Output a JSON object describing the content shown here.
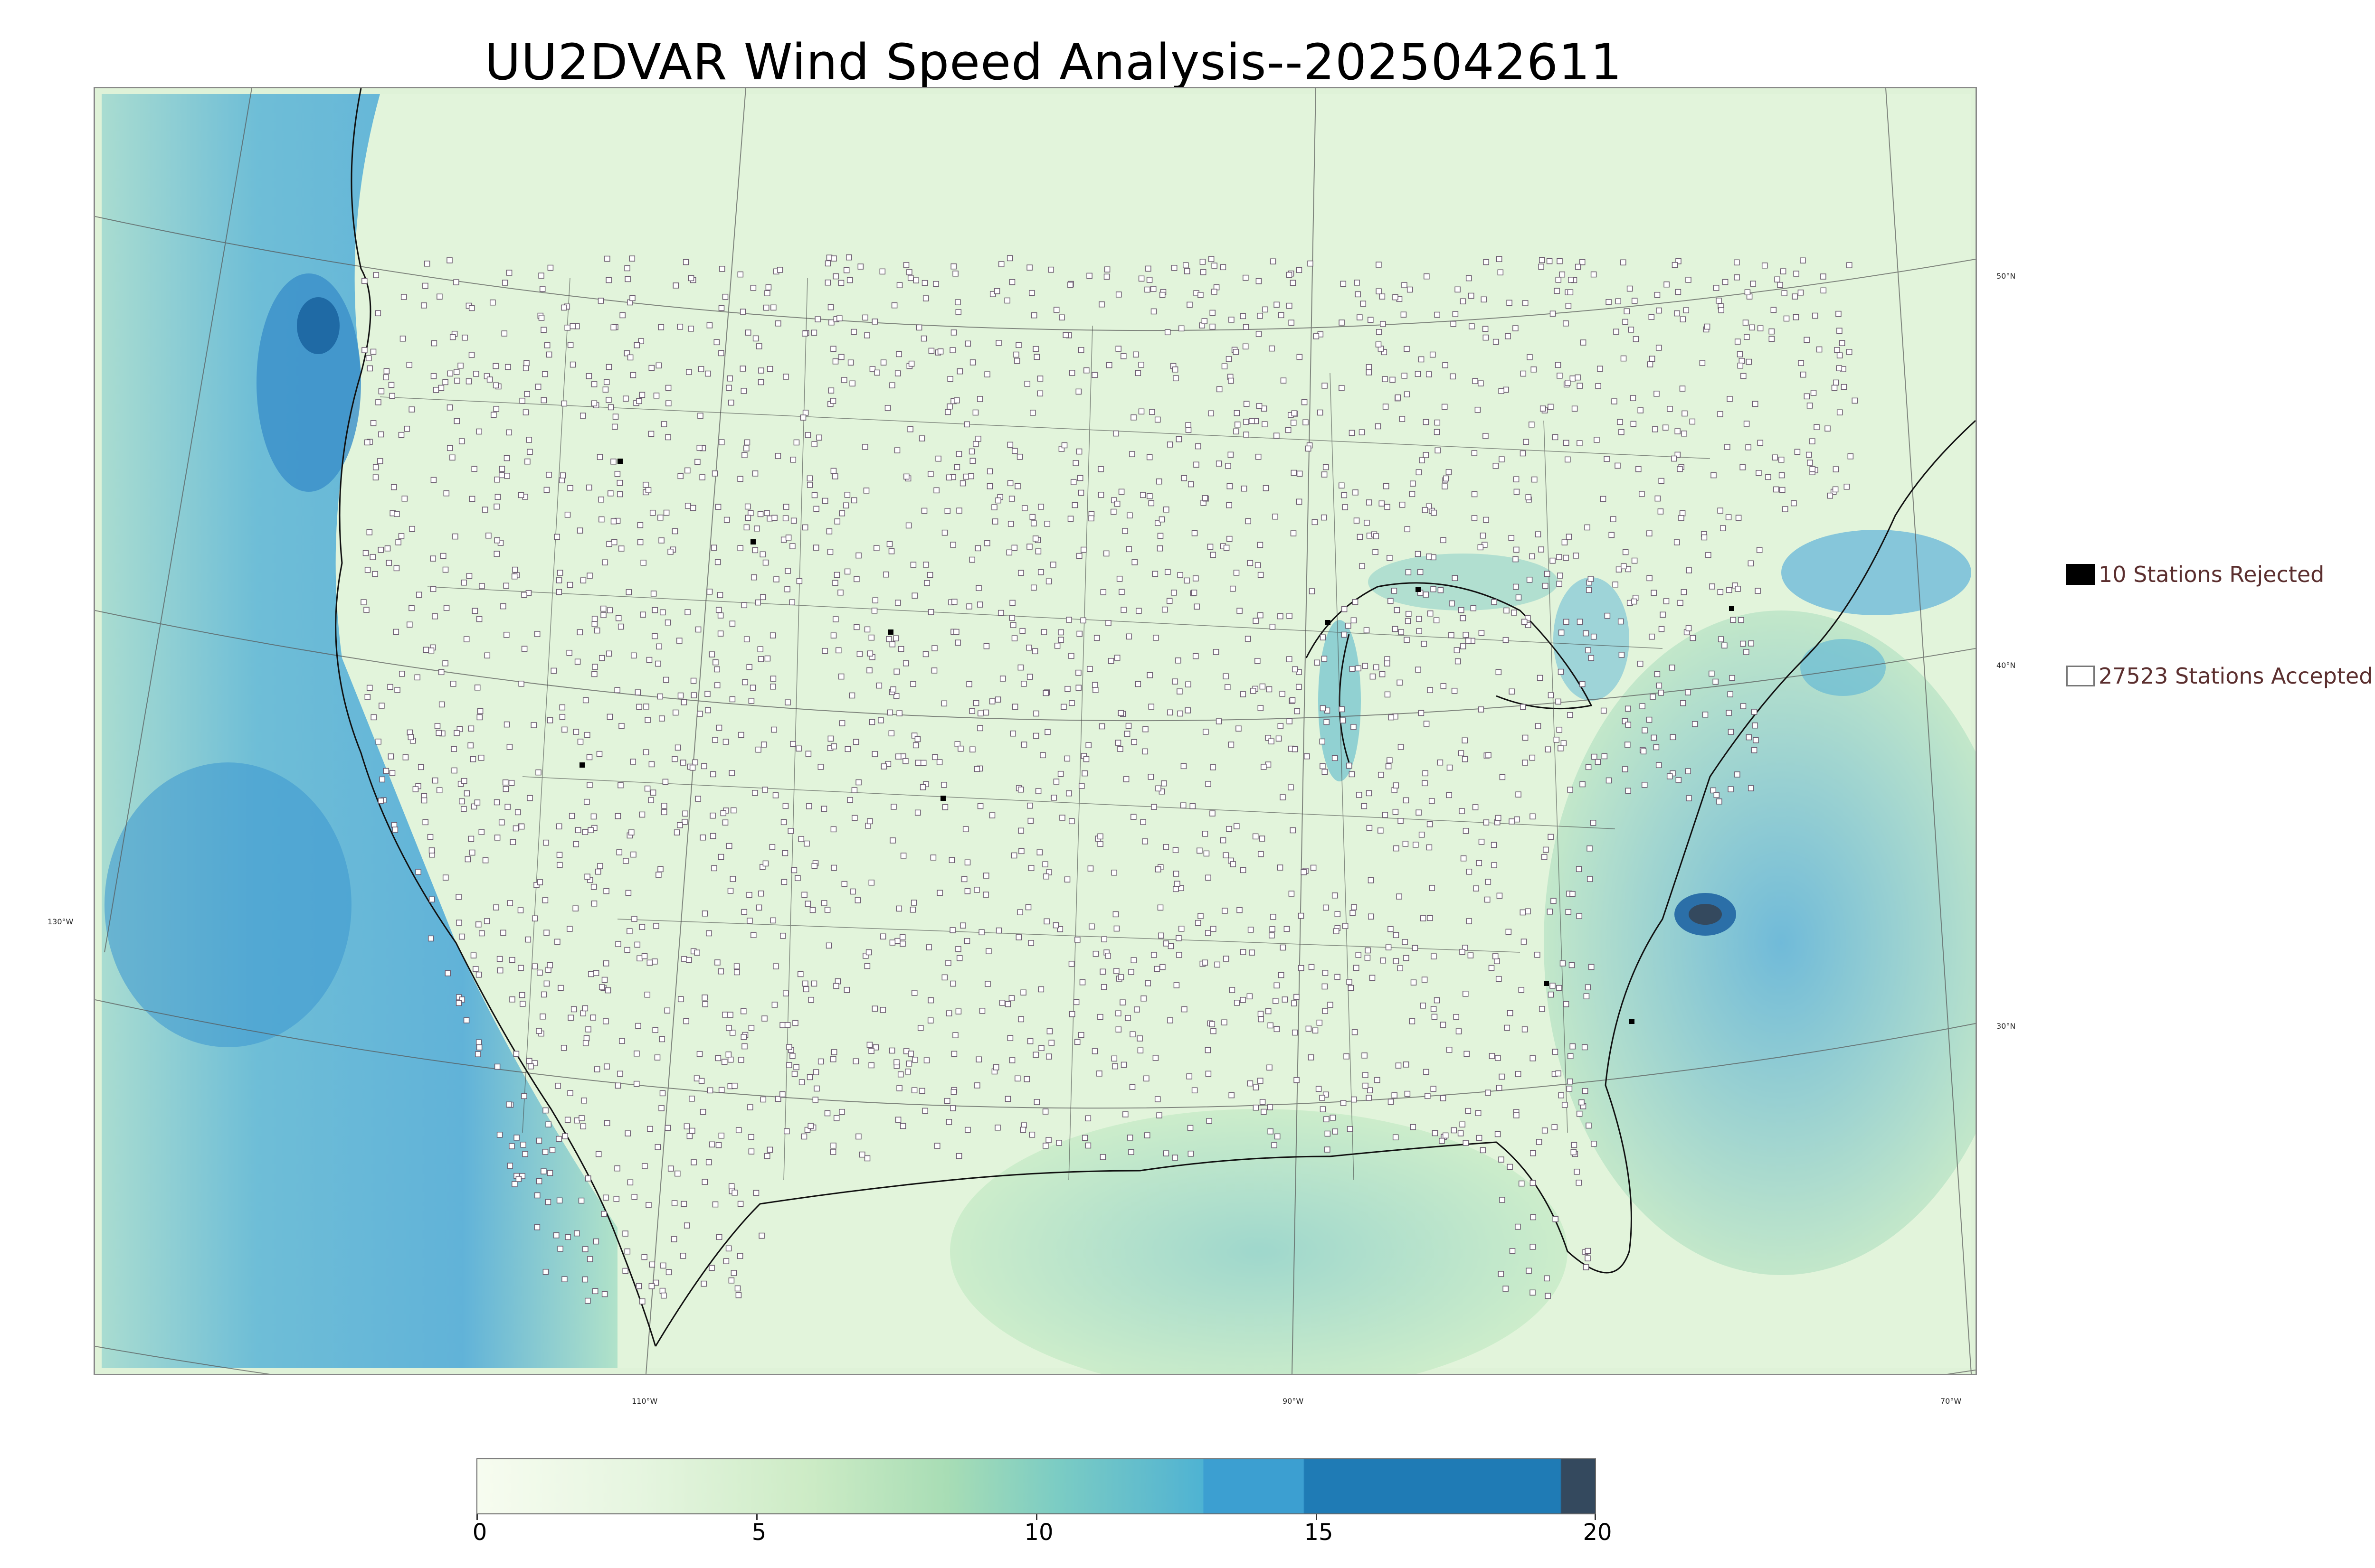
{
  "title": "UU2DVAR Wind Speed Analysis--2025042611",
  "graticule": {
    "latitude_labels": [
      "50°N",
      "40°N",
      "30°N"
    ],
    "longitude_labels": [
      "130°W",
      "110°W",
      "90°W",
      "70°W"
    ]
  },
  "legend": {
    "rejected": {
      "label": "10 Stations Rejected",
      "color": "#000000"
    },
    "accepted": {
      "label": "27523 Stations Accepted",
      "color": "#ffffff"
    }
  },
  "colorbar": {
    "ticks": [
      "0",
      "5",
      "10",
      "15",
      "20"
    ],
    "min": 0,
    "max": 20,
    "colors": [
      "#f7fcf0",
      "#ccebc5",
      "#7bccc4",
      "#4eb3d3",
      "#1f7bb5",
      "#34495e"
    ]
  }
}
